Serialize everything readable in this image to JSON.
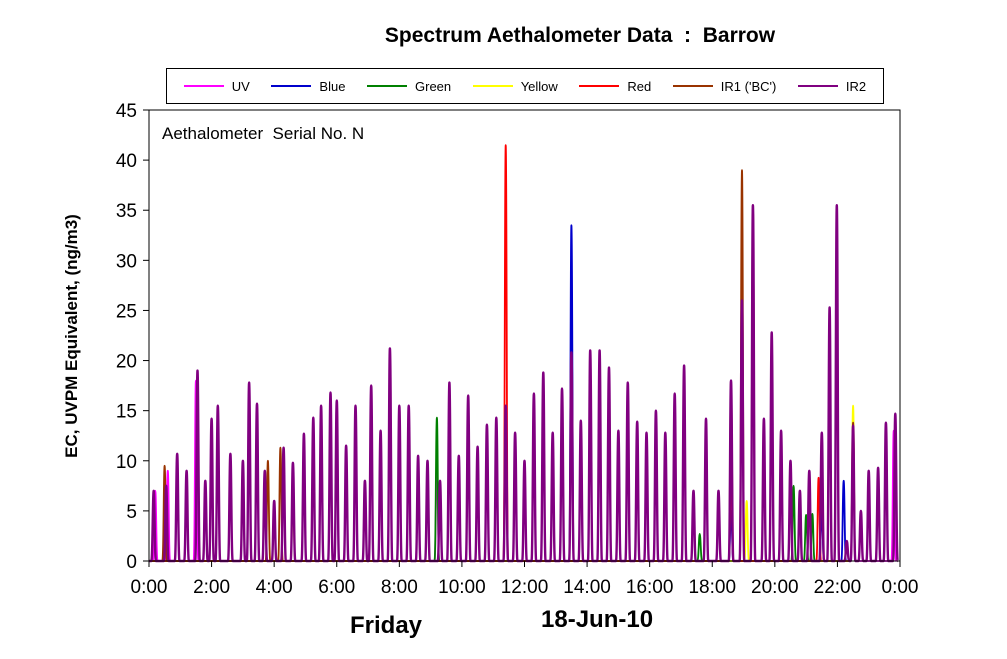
{
  "chart_data": {
    "type": "line",
    "title": "Spectrum Aethalometer Data  :  Barrow",
    "annotation": "Aethalometer  Serial No. N",
    "ylabel": "EC, UVPM Equivalent, (ng/m3)",
    "xlabel_day": "Friday",
    "xlabel_date": "18-Jun-10",
    "ylim": [
      0,
      45
    ],
    "yticks": [
      "0",
      "5",
      "10",
      "15",
      "20",
      "25",
      "30",
      "35",
      "40",
      "45"
    ],
    "xticks": [
      "0:00",
      "2:00",
      "4:00",
      "6:00",
      "8:00",
      "10:00",
      "12:00",
      "14:00",
      "16:00",
      "18:00",
      "20:00",
      "22:00",
      "0:00"
    ],
    "x_unit": "hours since 0:00",
    "xlim": [
      0,
      24
    ],
    "grid": false,
    "legend_position": "top",
    "series": [
      {
        "name": "UV",
        "color": "#ff00ff",
        "peaks": [
          [
            0.2,
            7
          ],
          [
            0.6,
            9
          ],
          [
            1.5,
            18
          ],
          [
            3.2,
            17
          ],
          [
            6.0,
            16
          ],
          [
            9.2,
            10
          ],
          [
            13.5,
            20
          ],
          [
            18.6,
            9
          ],
          [
            20.8,
            7
          ],
          [
            21.5,
            12.8
          ],
          [
            22.5,
            14
          ],
          [
            23.8,
            13
          ]
        ]
      },
      {
        "name": "Blue",
        "color": "#0000cc",
        "peaks": [
          [
            13.5,
            33.5
          ],
          [
            18.6,
            5
          ],
          [
            21.5,
            5
          ],
          [
            22.2,
            8
          ]
        ]
      },
      {
        "name": "Green",
        "color": "#008000",
        "peaks": [
          [
            9.2,
            14.3
          ],
          [
            17.6,
            2.7
          ],
          [
            20.6,
            7.5
          ],
          [
            21.0,
            4.6
          ],
          [
            21.2,
            4.7
          ]
        ]
      },
      {
        "name": "Yellow",
        "color": "#ffff00",
        "peaks": [
          [
            4.6,
            7
          ],
          [
            19.1,
            6
          ],
          [
            22.5,
            15.5
          ]
        ]
      },
      {
        "name": "Red",
        "color": "#ff0000",
        "peaks": [
          [
            11.4,
            41.5
          ],
          [
            18.6,
            10
          ],
          [
            21.4,
            8.3
          ]
        ]
      },
      {
        "name": "IR1 ('BC')",
        "color": "#993300",
        "peaks": [
          [
            0.5,
            9.5
          ],
          [
            3.8,
            10
          ],
          [
            4.2,
            11.3
          ],
          [
            18.6,
            18
          ],
          [
            18.95,
            39
          ],
          [
            19.3,
            35.5
          ],
          [
            22.5,
            13.8
          ]
        ]
      },
      {
        "name": "IR2",
        "color": "#800080",
        "peaks": [
          [
            0.15,
            7
          ],
          [
            0.55,
            7.5
          ],
          [
            0.9,
            10.7
          ],
          [
            1.2,
            9
          ],
          [
            1.55,
            19
          ],
          [
            1.8,
            8
          ],
          [
            2.0,
            14.2
          ],
          [
            2.2,
            15.5
          ],
          [
            2.6,
            10.7
          ],
          [
            3.0,
            10
          ],
          [
            3.2,
            17.8
          ],
          [
            3.45,
            15.7
          ],
          [
            3.7,
            9
          ],
          [
            4.0,
            6
          ],
          [
            4.3,
            11.3
          ],
          [
            4.6,
            9.8
          ],
          [
            4.95,
            12.7
          ],
          [
            5.25,
            14.3
          ],
          [
            5.5,
            15.5
          ],
          [
            5.8,
            16.8
          ],
          [
            6.0,
            16
          ],
          [
            6.3,
            11.5
          ],
          [
            6.6,
            15.5
          ],
          [
            6.9,
            8
          ],
          [
            7.1,
            17.5
          ],
          [
            7.4,
            13
          ],
          [
            7.7,
            21.2
          ],
          [
            8.0,
            15.5
          ],
          [
            8.3,
            15.5
          ],
          [
            8.6,
            10.5
          ],
          [
            8.9,
            10
          ],
          [
            9.3,
            8
          ],
          [
            9.6,
            17.8
          ],
          [
            9.9,
            10.5
          ],
          [
            10.2,
            16.5
          ],
          [
            10.5,
            11.4
          ],
          [
            10.8,
            13.6
          ],
          [
            11.1,
            14.3
          ],
          [
            11.4,
            15.5
          ],
          [
            11.7,
            12.8
          ],
          [
            12.0,
            10
          ],
          [
            12.3,
            16.7
          ],
          [
            12.6,
            18.8
          ],
          [
            12.9,
            12.8
          ],
          [
            13.2,
            17.2
          ],
          [
            13.5,
            20.8
          ],
          [
            13.8,
            14
          ],
          [
            14.1,
            21
          ],
          [
            14.4,
            21
          ],
          [
            14.7,
            19.3
          ],
          [
            15.0,
            13
          ],
          [
            15.3,
            17.8
          ],
          [
            15.6,
            13.9
          ],
          [
            15.9,
            12.8
          ],
          [
            16.2,
            15
          ],
          [
            16.5,
            12.8
          ],
          [
            16.8,
            16.7
          ],
          [
            17.1,
            19.5
          ],
          [
            17.4,
            7
          ],
          [
            17.8,
            14.2
          ],
          [
            18.2,
            7
          ],
          [
            18.6,
            18
          ],
          [
            18.95,
            26
          ],
          [
            19.3,
            35.5
          ],
          [
            19.65,
            14.2
          ],
          [
            19.9,
            22.8
          ],
          [
            20.2,
            13
          ],
          [
            20.5,
            10
          ],
          [
            20.8,
            7
          ],
          [
            21.1,
            9
          ],
          [
            21.5,
            12.8
          ],
          [
            21.75,
            25.3
          ],
          [
            21.98,
            35.5
          ],
          [
            22.3,
            2
          ],
          [
            22.5,
            13.5
          ],
          [
            22.75,
            5
          ],
          [
            23.0,
            9
          ],
          [
            23.3,
            9.3
          ],
          [
            23.55,
            13.8
          ],
          [
            23.85,
            14.7
          ]
        ]
      }
    ]
  }
}
